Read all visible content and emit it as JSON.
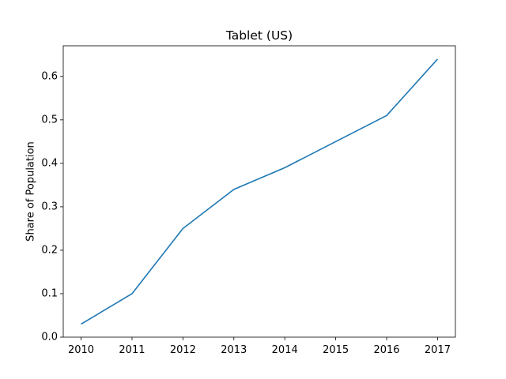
{
  "chart_data": {
    "type": "line",
    "title": "Tablet (US)",
    "xlabel": "",
    "ylabel": "Share of Population",
    "x": [
      2010,
      2011,
      2012,
      2013,
      2014,
      2015,
      2016,
      2017
    ],
    "x_tick_labels": [
      "2010",
      "2011",
      "2012",
      "2013",
      "2014",
      "2015",
      "2016",
      "2017"
    ],
    "y_ticks": [
      0.0,
      0.1,
      0.2,
      0.3,
      0.4,
      0.5,
      0.6
    ],
    "y_tick_labels": [
      "0.0",
      "0.1",
      "0.2",
      "0.3",
      "0.4",
      "0.5",
      "0.6"
    ],
    "ylim": [
      0.0,
      0.6705
    ],
    "xlim": [
      2009.65,
      2017.35
    ],
    "series": [
      {
        "values": [
          0.03,
          0.1,
          0.25,
          0.34,
          0.39,
          0.45,
          0.51,
          0.64
        ],
        "color": "#1f77b4"
      }
    ],
    "grid": false,
    "legend": "none"
  }
}
